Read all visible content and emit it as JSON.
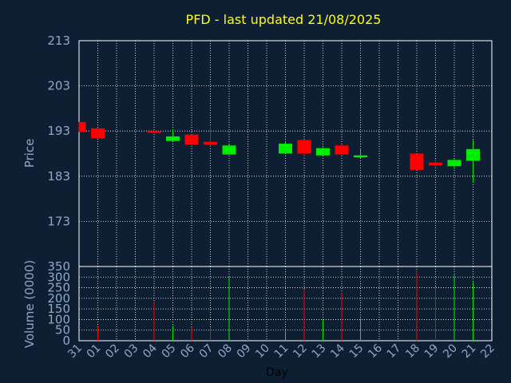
{
  "chart_data": {
    "type": "candlestick",
    "title": "PFD - last updated 21/08/2025",
    "xlabel": "Day",
    "price": {
      "ylabel": "Price",
      "ylim": [
        163,
        213
      ],
      "yticks": [
        173,
        183,
        193,
        203,
        213
      ],
      "grid": true
    },
    "volume": {
      "ylabel": "Volume (0000)",
      "ylim": [
        0,
        350
      ],
      "yticks": [
        0,
        50,
        100,
        150,
        200,
        250,
        300,
        350
      ],
      "grid": true
    },
    "x_ticks": [
      "31",
      "01",
      "02",
      "03",
      "04",
      "05",
      "06",
      "07",
      "08",
      "09",
      "10",
      "11",
      "12",
      "13",
      "14",
      "15",
      "16",
      "17",
      "18",
      "19",
      "20",
      "21",
      "22"
    ],
    "candles": [
      {
        "day": "31",
        "open": 195.0,
        "high": 195.0,
        "low": 192.8,
        "close": 192.8,
        "volume": 0
      },
      {
        "day": "01",
        "open": 193.6,
        "high": 193.6,
        "low": 191.4,
        "close": 191.4,
        "volume": 65
      },
      {
        "day": "04",
        "open": 193.0,
        "high": 193.0,
        "low": 192.6,
        "close": 192.6,
        "volume": 185
      },
      {
        "day": "05",
        "open": 190.8,
        "high": 193.4,
        "low": 190.8,
        "close": 191.8,
        "volume": 70
      },
      {
        "day": "06",
        "open": 192.2,
        "high": 192.2,
        "low": 190.0,
        "close": 190.0,
        "volume": 65
      },
      {
        "day": "07",
        "open": 190.6,
        "high": 194.0,
        "low": 189.6,
        "close": 190.0,
        "volume": 65
      },
      {
        "day": "08",
        "open": 187.8,
        "high": 190.0,
        "low": 187.8,
        "close": 189.8,
        "volume": 300
      },
      {
        "day": "11",
        "open": 188.0,
        "high": 190.8,
        "low": 188.0,
        "close": 190.2,
        "volume": 50
      },
      {
        "day": "12",
        "open": 191.0,
        "high": 191.0,
        "low": 187.4,
        "close": 188.0,
        "volume": 245
      },
      {
        "day": "13",
        "open": 187.6,
        "high": 189.4,
        "low": 187.6,
        "close": 189.2,
        "volume": 100
      },
      {
        "day": "14",
        "open": 189.8,
        "high": 189.8,
        "low": 187.8,
        "close": 187.8,
        "volume": 225
      },
      {
        "day": "15",
        "open": 187.2,
        "high": 189.2,
        "low": 187.0,
        "close": 187.6,
        "volume": 105
      },
      {
        "day": "18",
        "open": 188.0,
        "high": 188.0,
        "low": 184.4,
        "close": 184.4,
        "volume": 330
      },
      {
        "day": "19",
        "open": 186.0,
        "high": 186.8,
        "low": 184.8,
        "close": 185.4,
        "volume": 255
      },
      {
        "day": "20",
        "open": 185.2,
        "high": 186.8,
        "low": 184.6,
        "close": 186.6,
        "volume": 310
      },
      {
        "day": "21",
        "open": 186.4,
        "high": 191.0,
        "low": 181.6,
        "close": 189.0,
        "volume": 275
      }
    ],
    "colors": {
      "up": "#00ee00",
      "down": "#ff0000",
      "background": "#0f1f33",
      "frame": "#ffffff",
      "title": "#ffff00",
      "axis_text": "#8fa8c8"
    }
  }
}
